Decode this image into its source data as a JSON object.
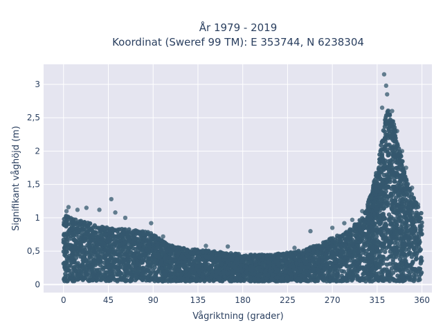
{
  "chart_data": {
    "type": "scatter",
    "title": "År 1979 - 2019",
    "subtitle": "Koordinat (Sweref 99 TM): E 353744, N 6238304",
    "xlabel": "Vågriktning (grader)",
    "ylabel": "Signifikant våghöjd (m)",
    "xlim": [
      -20,
      370
    ],
    "ylim": [
      -0.12,
      3.3
    ],
    "xticks": [
      0,
      45,
      90,
      135,
      180,
      225,
      270,
      315,
      360
    ],
    "xtick_labels": [
      "0",
      "45",
      "90",
      "135",
      "180",
      "225",
      "270",
      "315",
      "360"
    ],
    "yticks": [
      0,
      0.5,
      1,
      1.5,
      2,
      2.5,
      3
    ],
    "ytick_labels": [
      "0",
      "0,5",
      "1",
      "1,5",
      "2",
      "2,5",
      "3"
    ],
    "grid": true,
    "marker_color": "#34586e",
    "plot_bgcolor": "#e5e5f0",
    "envelope": [
      {
        "x": 0,
        "y": 1.05
      },
      {
        "x": 10,
        "y": 0.98
      },
      {
        "x": 20,
        "y": 0.95
      },
      {
        "x": 30,
        "y": 0.9
      },
      {
        "x": 45,
        "y": 0.85
      },
      {
        "x": 60,
        "y": 0.83
      },
      {
        "x": 75,
        "y": 0.82
      },
      {
        "x": 85,
        "y": 0.8
      },
      {
        "x": 95,
        "y": 0.7
      },
      {
        "x": 105,
        "y": 0.6
      },
      {
        "x": 120,
        "y": 0.55
      },
      {
        "x": 135,
        "y": 0.52
      },
      {
        "x": 150,
        "y": 0.5
      },
      {
        "x": 165,
        "y": 0.48
      },
      {
        "x": 180,
        "y": 0.45
      },
      {
        "x": 195,
        "y": 0.45
      },
      {
        "x": 210,
        "y": 0.45
      },
      {
        "x": 225,
        "y": 0.48
      },
      {
        "x": 240,
        "y": 0.52
      },
      {
        "x": 255,
        "y": 0.6
      },
      {
        "x": 270,
        "y": 0.7
      },
      {
        "x": 285,
        "y": 0.8
      },
      {
        "x": 300,
        "y": 1.0
      },
      {
        "x": 310,
        "y": 1.4
      },
      {
        "x": 318,
        "y": 2.0
      },
      {
        "x": 323,
        "y": 2.5
      },
      {
        "x": 327,
        "y": 2.7
      },
      {
        "x": 332,
        "y": 2.4
      },
      {
        "x": 338,
        "y": 2.0
      },
      {
        "x": 345,
        "y": 1.6
      },
      {
        "x": 352,
        "y": 1.3
      },
      {
        "x": 360,
        "y": 1.05
      }
    ],
    "outliers": [
      {
        "x": 48,
        "y": 1.28
      },
      {
        "x": 23,
        "y": 1.15
      },
      {
        "x": 14,
        "y": 1.12
      },
      {
        "x": 5,
        "y": 1.16
      },
      {
        "x": 36,
        "y": 1.12
      },
      {
        "x": 52,
        "y": 1.08
      },
      {
        "x": 62,
        "y": 1.0
      },
      {
        "x": 88,
        "y": 0.92
      },
      {
        "x": 100,
        "y": 0.72
      },
      {
        "x": 143,
        "y": 0.58
      },
      {
        "x": 165,
        "y": 0.57
      },
      {
        "x": 232,
        "y": 0.55
      },
      {
        "x": 248,
        "y": 0.8
      },
      {
        "x": 270,
        "y": 0.85
      },
      {
        "x": 282,
        "y": 0.92
      },
      {
        "x": 290,
        "y": 0.97
      },
      {
        "x": 300,
        "y": 1.1
      },
      {
        "x": 308,
        "y": 1.3
      },
      {
        "x": 312,
        "y": 1.55
      },
      {
        "x": 322,
        "y": 3.15
      },
      {
        "x": 324,
        "y": 2.98
      },
      {
        "x": 325,
        "y": 2.85
      },
      {
        "x": 320,
        "y": 2.65
      },
      {
        "x": 330,
        "y": 2.6
      },
      {
        "x": 335,
        "y": 2.3
      },
      {
        "x": 340,
        "y": 2.0
      },
      {
        "x": 344,
        "y": 1.75
      },
      {
        "x": 350,
        "y": 1.45
      },
      {
        "x": 356,
        "y": 1.2
      },
      {
        "x": 3,
        "y": 1.1
      }
    ]
  }
}
